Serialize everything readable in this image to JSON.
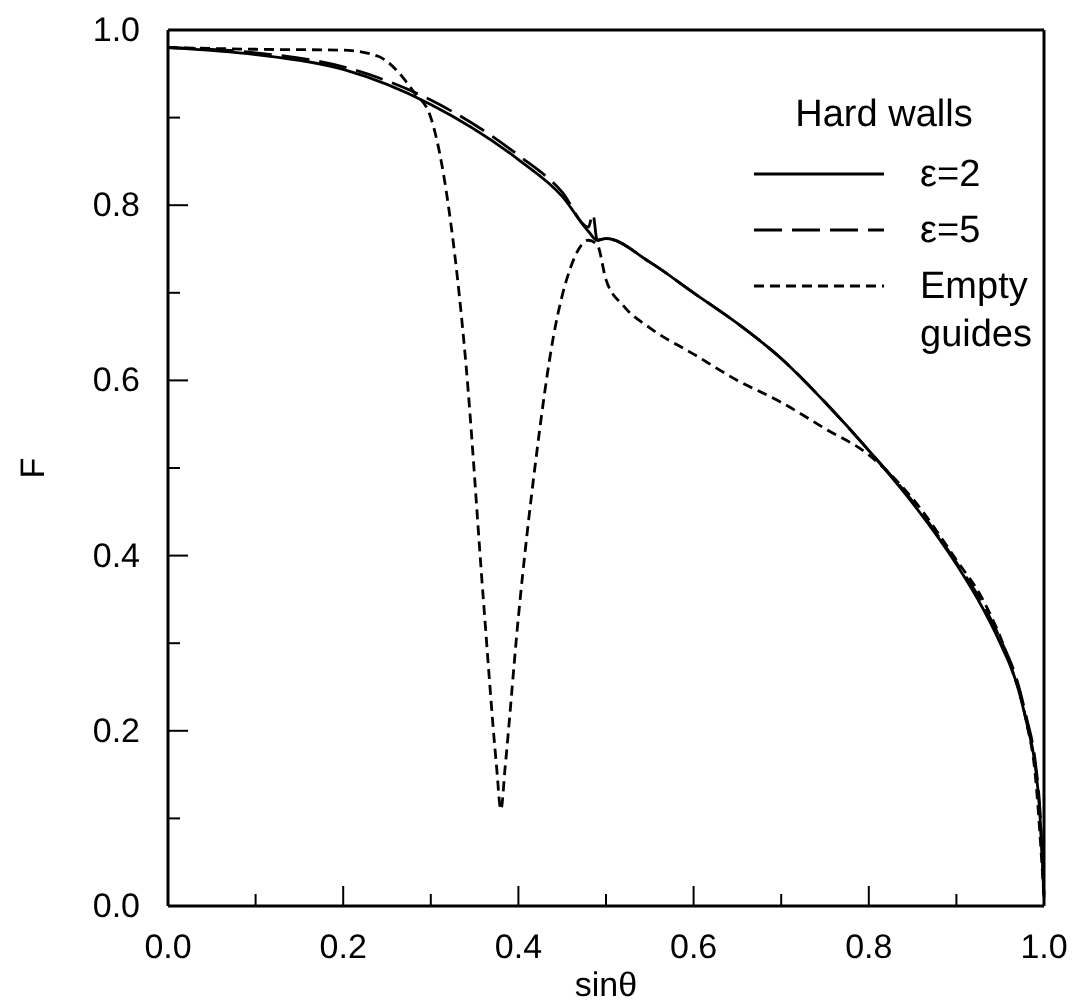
{
  "chart_data": {
    "type": "line",
    "xlabel": "sinθ",
    "ylabel": "F",
    "legend_title": "Hard walls",
    "legend": "top right",
    "grid": false,
    "marker": "none",
    "xlim": [
      0,
      1
    ],
    "ylim": [
      0,
      1
    ],
    "xticks": [
      {
        "value": 0,
        "label": "0.0"
      },
      {
        "value": 0.1,
        "label": null
      },
      0.2,
      {
        "value": 0.3,
        "label": null
      },
      0.4,
      {
        "value": 0.5,
        "label": null
      },
      0.6,
      {
        "value": 0.7,
        "label": null
      },
      0.8,
      {
        "value": 0.9,
        "label": null
      },
      {
        "value": 1,
        "label": "1.0"
      }
    ],
    "yticks": [
      {
        "value": 0,
        "label": "0.0"
      },
      {
        "value": 0.1,
        "label": null
      },
      0.2,
      {
        "value": 0.3,
        "label": null
      },
      0.4,
      {
        "value": 0.5,
        "label": null
      },
      0.6,
      {
        "value": 0.7,
        "label": null
      },
      0.8,
      {
        "value": 0.9,
        "label": null
      },
      {
        "value": 1,
        "label": "1.0"
      }
    ],
    "series": [
      {
        "name": "ε=2",
        "color": "#000000",
        "line_style": "solid",
        "x": [
          0,
          0.1,
          0.2,
          0.3,
          0.4,
          0.45,
          0.48,
          0.49,
          0.5,
          0.55,
          0.6,
          0.65,
          0.7,
          0.75,
          0.8,
          0.85,
          0.9,
          0.93,
          0.95,
          0.97,
          0.98,
          0.99,
          0.995,
          1
        ],
        "values": [
          0.98,
          0.972,
          0.955,
          0.915,
          0.852,
          0.81,
          0.77,
          0.76,
          0.762,
          0.735,
          0.7,
          0.665,
          0.625,
          0.575,
          0.52,
          0.46,
          0.39,
          0.34,
          0.3,
          0.25,
          0.21,
          0.16,
          0.11,
          0.01
        ]
      },
      {
        "name": "ε=5",
        "color": "#000000",
        "line_style": "dashed",
        "x": [
          0,
          0.1,
          0.2,
          0.3,
          0.4,
          0.45,
          0.48,
          0.485,
          0.49,
          0.5,
          0.55,
          0.6,
          0.65,
          0.7,
          0.75,
          0.8,
          0.85,
          0.9,
          0.93,
          0.95,
          0.97,
          0.98,
          0.99,
          0.995,
          1
        ],
        "values": [
          0.98,
          0.974,
          0.958,
          0.92,
          0.857,
          0.815,
          0.775,
          0.79,
          0.76,
          0.762,
          0.735,
          0.7,
          0.665,
          0.625,
          0.575,
          0.52,
          0.462,
          0.392,
          0.345,
          0.305,
          0.255,
          0.215,
          0.165,
          0.115,
          0.01
        ]
      },
      {
        "name": "Empty guides",
        "color": "#000000",
        "line_style": "dotted",
        "x": [
          0,
          0.1,
          0.2,
          0.24,
          0.26,
          0.28,
          0.3,
          0.32,
          0.34,
          0.36,
          0.375,
          0.38,
          0.385,
          0.4,
          0.42,
          0.44,
          0.46,
          0.48,
          0.49,
          0.5,
          0.52,
          0.55,
          0.6,
          0.65,
          0.7,
          0.75,
          0.8,
          0.85,
          0.9,
          0.93,
          0.96,
          0.98,
          0.99,
          1
        ],
        "values": [
          0.98,
          0.978,
          0.977,
          0.97,
          0.955,
          0.93,
          0.9,
          0.8,
          0.62,
          0.35,
          0.16,
          0.11,
          0.16,
          0.33,
          0.51,
          0.65,
          0.73,
          0.76,
          0.755,
          0.715,
          0.685,
          0.66,
          0.63,
          0.6,
          0.575,
          0.545,
          0.515,
          0.465,
          0.395,
          0.35,
          0.28,
          0.21,
          0.15,
          0.01
        ]
      }
    ]
  }
}
